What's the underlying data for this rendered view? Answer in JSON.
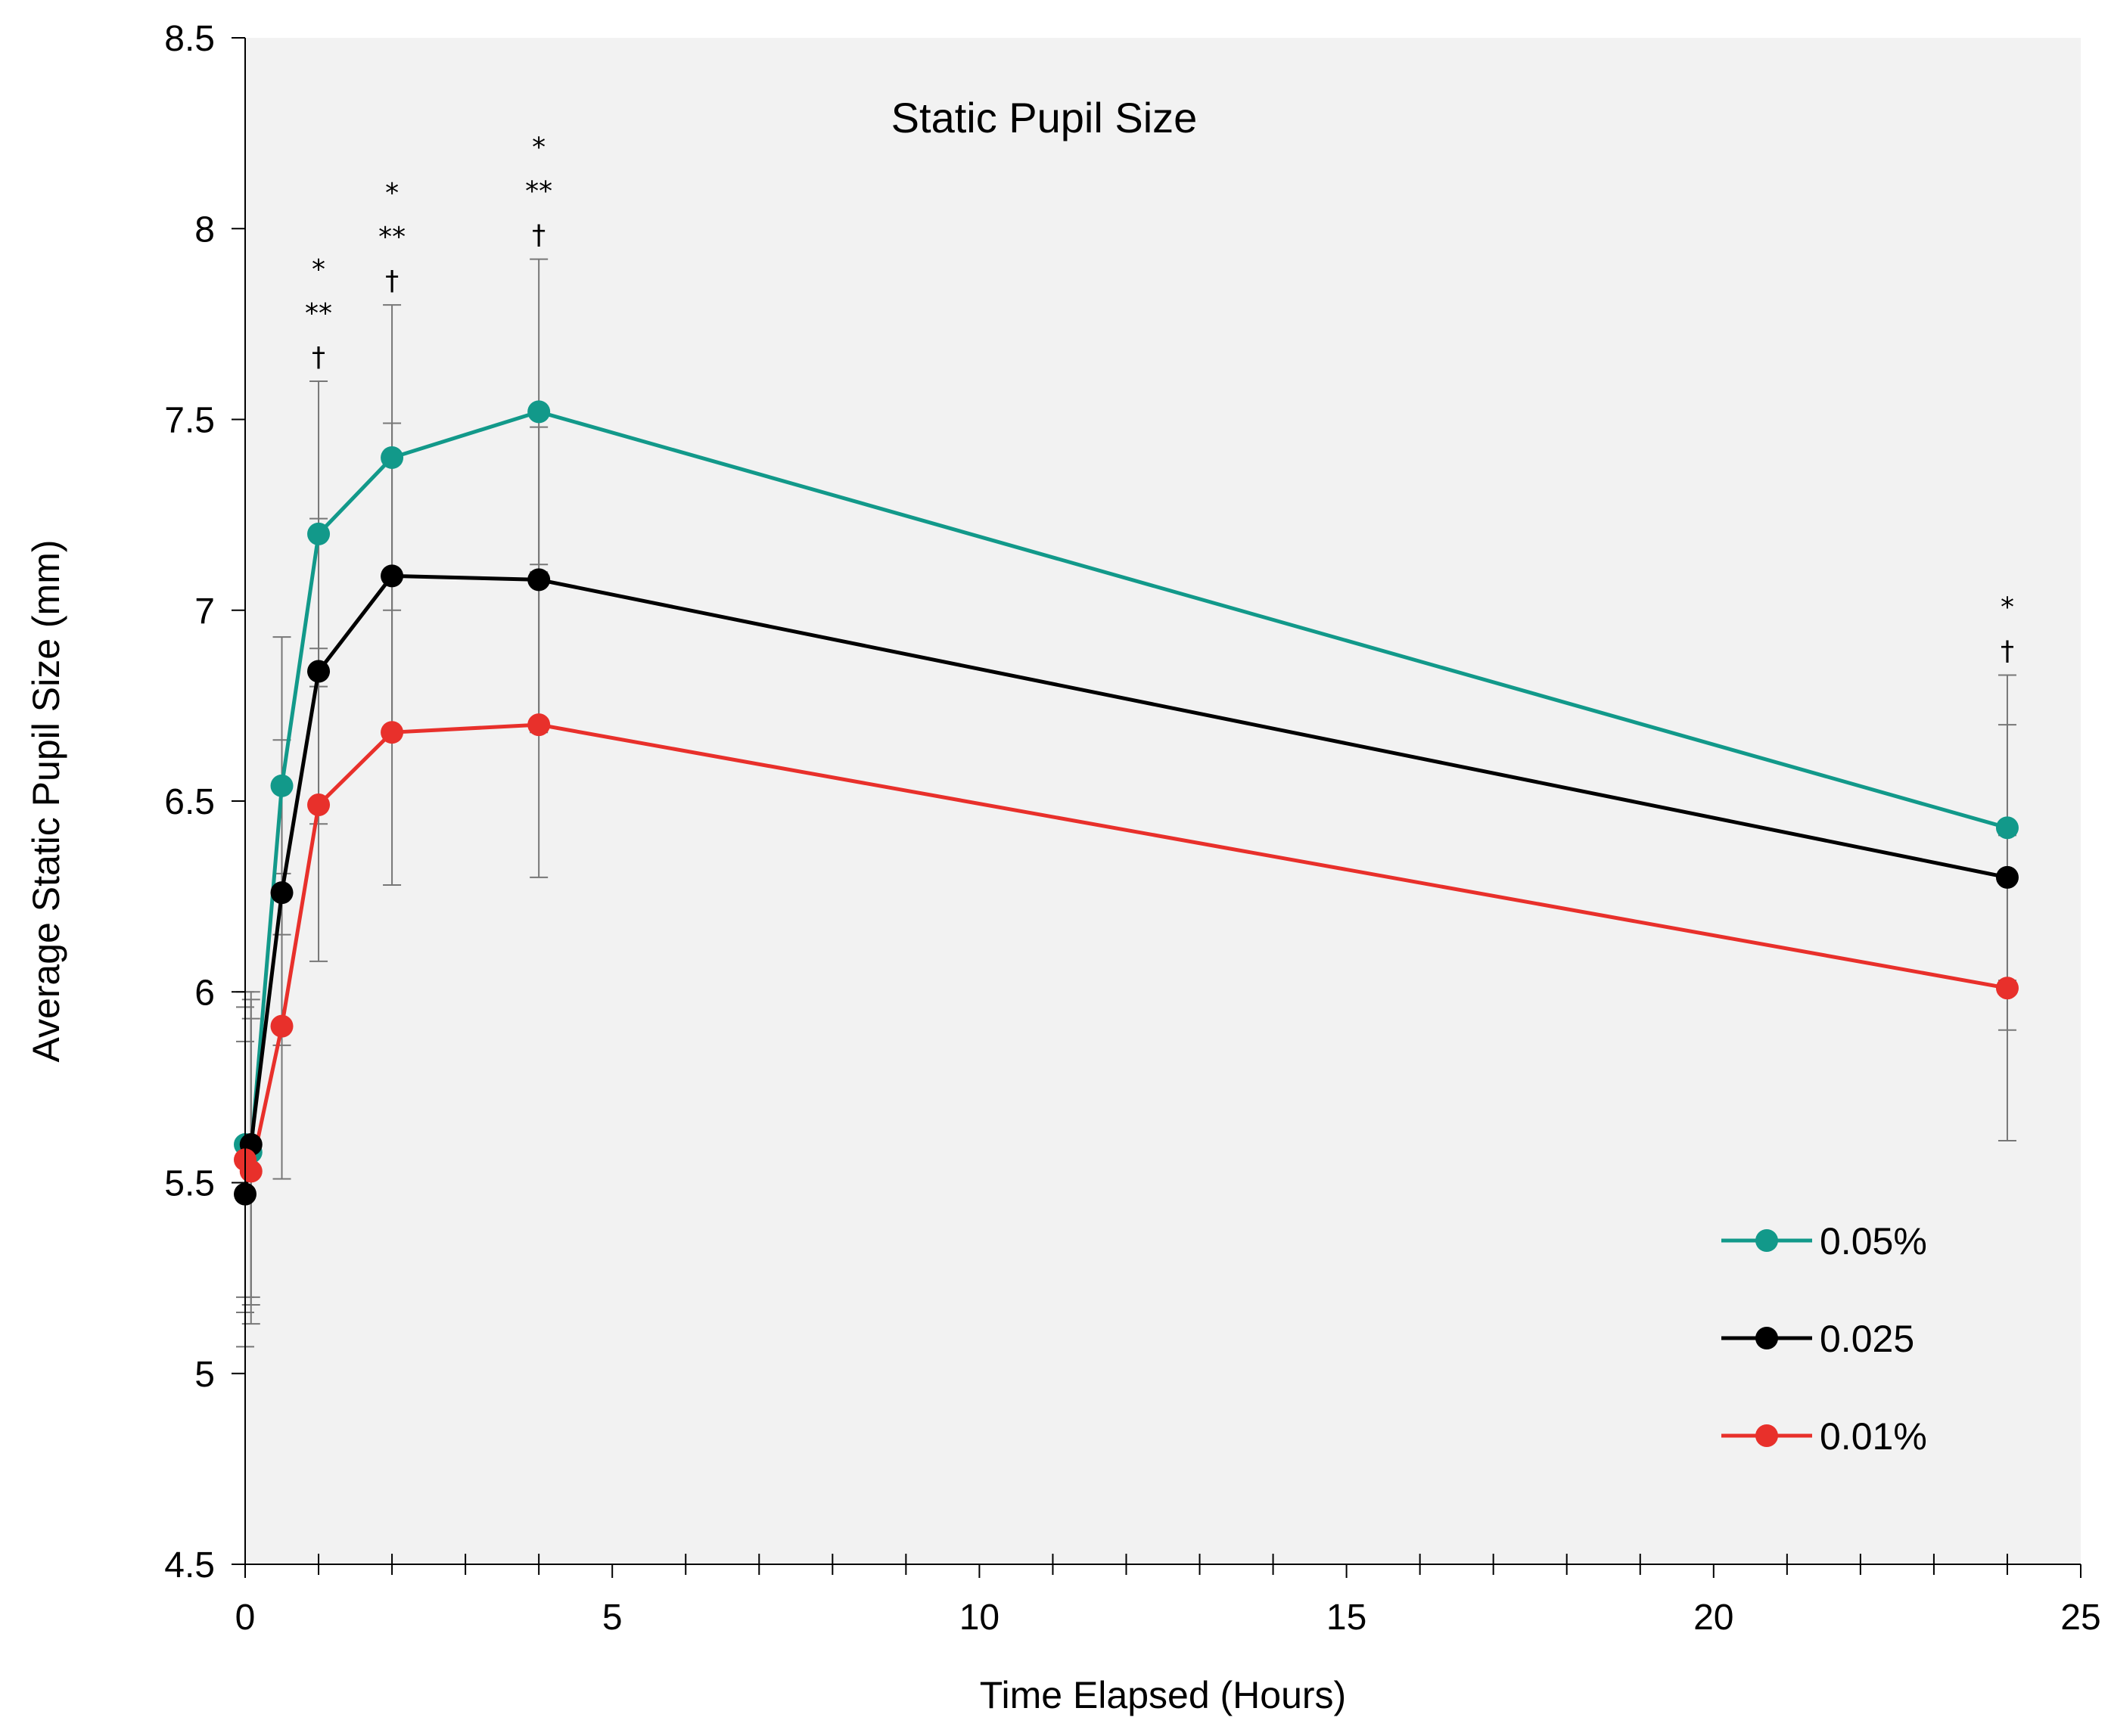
{
  "chart_data": {
    "type": "line",
    "title": "Static Pupil Size",
    "xlabel": "Time Elapsed (Hours)",
    "ylabel": "Average Static Pupil Size (mm)",
    "xlim": [
      0,
      25
    ],
    "ylim": [
      4.5,
      8.5
    ],
    "xticks": [
      0,
      5,
      10,
      15,
      20,
      25
    ],
    "xtick_labels": [
      "0",
      "5",
      "10",
      "15",
      "20",
      "25"
    ],
    "yticks": [
      4.5,
      5,
      5.5,
      6,
      6.5,
      7,
      7.5,
      8,
      8.5
    ],
    "ytick_labels": [
      "4.5",
      "5",
      "5.5",
      "6",
      "6.5",
      "7",
      "7.5",
      "8",
      "8.5"
    ],
    "x": [
      0,
      0.08,
      0.5,
      1,
      2,
      4,
      24
    ],
    "legend_position": "bottom-right",
    "series": [
      {
        "name": "0.05%",
        "color": "#12998a",
        "values": [
          5.6,
          5.58,
          6.54,
          7.2,
          7.4,
          7.52,
          6.43
        ],
        "error": [
          0.4,
          0.4,
          0.39,
          0.4,
          0.4,
          0.4,
          0.4
        ]
      },
      {
        "name": "0.025",
        "color": "#000000",
        "values": [
          5.47,
          5.6,
          6.26,
          6.84,
          7.09,
          7.08,
          6.3
        ],
        "error": [
          0.4,
          0.4,
          0.4,
          0.4,
          0.4,
          0.4,
          0.4
        ]
      },
      {
        "name": "0.01%",
        "color": "#e8302b",
        "values": [
          5.56,
          5.53,
          5.91,
          6.49,
          6.68,
          6.7,
          6.01
        ],
        "error": [
          0.4,
          0.4,
          0.4,
          0.41,
          0.4,
          0.4,
          0.4
        ]
      }
    ],
    "annotations": [
      {
        "x": 1,
        "lines": [
          "*",
          "**",
          "†"
        ]
      },
      {
        "x": 2,
        "lines": [
          "*",
          "**",
          "†"
        ]
      },
      {
        "x": 4,
        "lines": [
          "*",
          "**",
          "†"
        ]
      },
      {
        "x": 24,
        "lines": [
          "*",
          "†"
        ]
      }
    ]
  }
}
